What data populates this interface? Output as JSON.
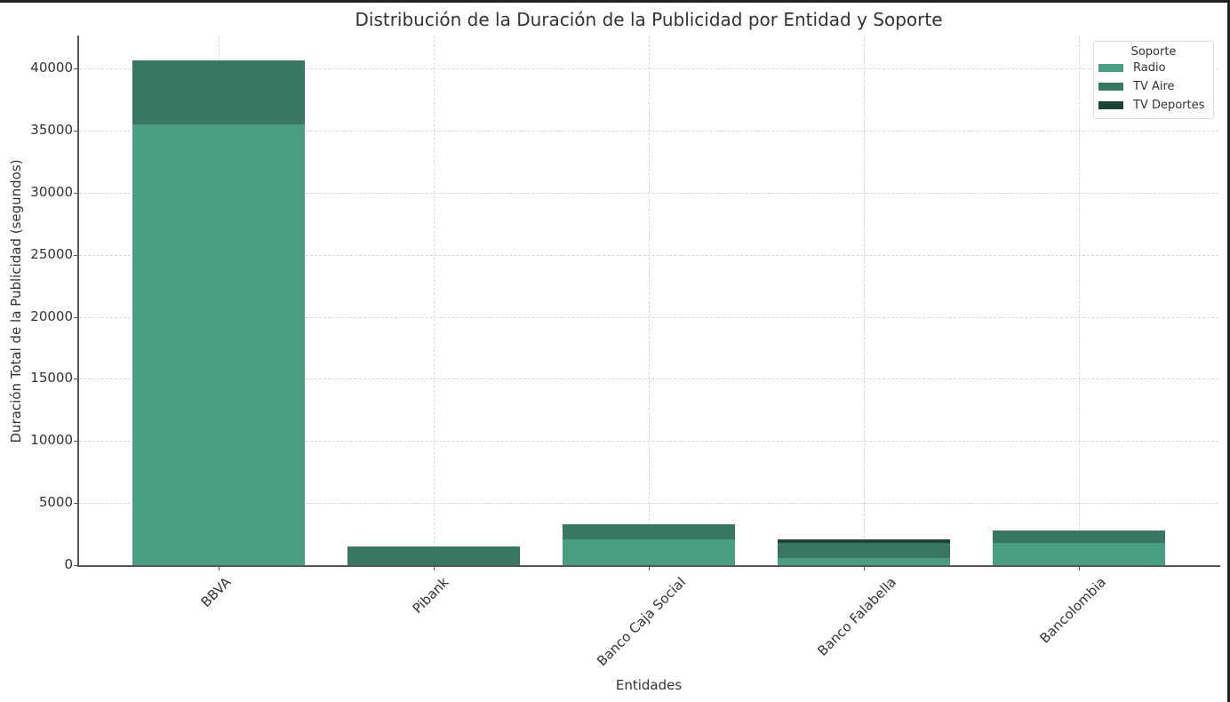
{
  "chart_data": {
    "type": "bar",
    "stacked": true,
    "title": "Distribución de la Duración de la Publicidad por Entidad y Soporte",
    "xlabel": "Entidades",
    "ylabel": "Duración Total de la Publicidad (segundos)",
    "ylim": [
      0,
      42500
    ],
    "yticks": [
      0,
      5000,
      10000,
      15000,
      20000,
      25000,
      30000,
      35000,
      40000
    ],
    "grid": true,
    "legend": {
      "title": "Soporte",
      "position": "upper right"
    },
    "categories": [
      "BBVA",
      "Pibank",
      "Banco Caja Social",
      "Banco Falabella",
      "Bancolombia"
    ],
    "series": [
      {
        "name": "Radio",
        "color": "#4a9e80",
        "values": [
          35470,
          0,
          2100,
          550,
          1770
        ]
      },
      {
        "name": "TV Aire",
        "color": "#387761",
        "values": [
          5200,
          1525,
          1210,
          1220,
          1020
        ]
      },
      {
        "name": "TV Deportes",
        "color": "#1d4536",
        "values": [
          0,
          0,
          0,
          290,
          0
        ]
      }
    ]
  }
}
